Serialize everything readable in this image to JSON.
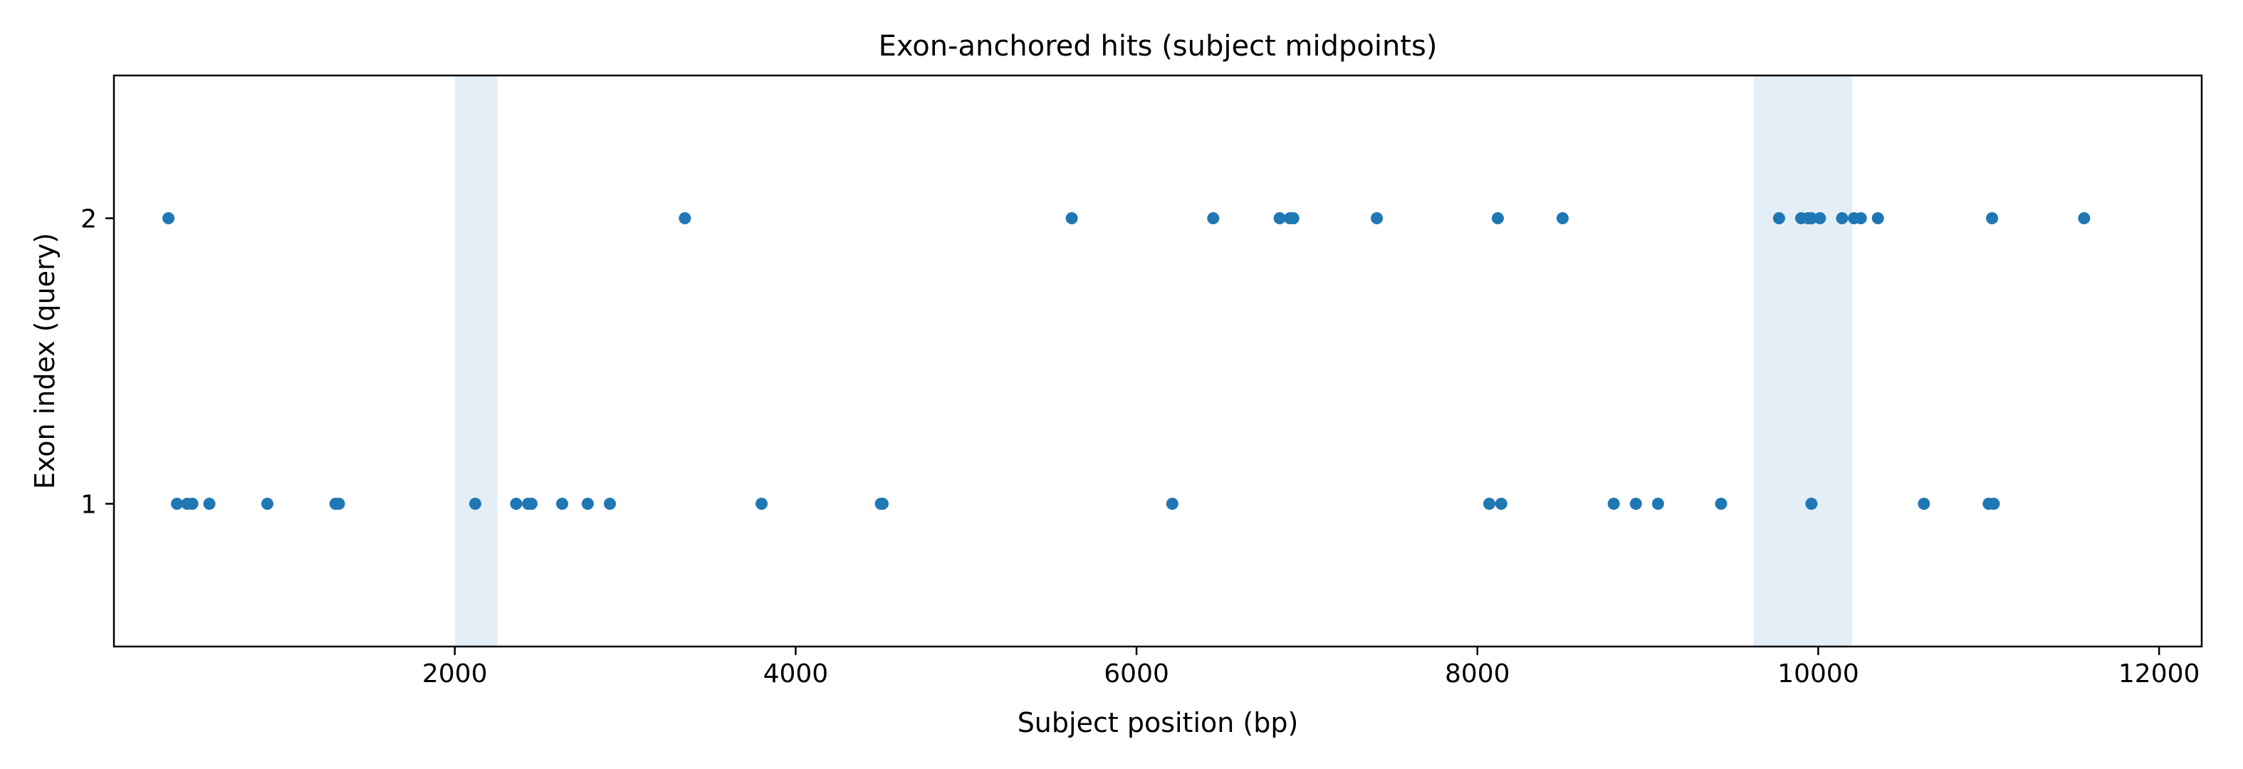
{
  "chart_data": {
    "type": "scatter",
    "title": "Exon-anchored hits (subject midpoints)",
    "xlabel": "Subject position (bp)",
    "ylabel": "Exon index (query)",
    "xlim": [
      0,
      12250
    ],
    "ylim": [
      0.5,
      2.5
    ],
    "xticks": [
      2000,
      4000,
      6000,
      8000,
      10000,
      12000
    ],
    "yticks": [
      1,
      2
    ],
    "grid": false,
    "legend": "none",
    "point_color": "#1f77b4",
    "shaded_regions": [
      {
        "x0": 2000,
        "x1": 2250,
        "color": "#1f77b4",
        "opacity": 0.12
      },
      {
        "x0": 9620,
        "x1": 10200,
        "color": "#1f77b4",
        "opacity": 0.12
      }
    ],
    "points": [
      {
        "x": 320,
        "y": 2
      },
      {
        "x": 3350,
        "y": 2
      },
      {
        "x": 5620,
        "y": 2
      },
      {
        "x": 6450,
        "y": 2
      },
      {
        "x": 6840,
        "y": 2
      },
      {
        "x": 6900,
        "y": 2
      },
      {
        "x": 6920,
        "y": 2
      },
      {
        "x": 7410,
        "y": 2
      },
      {
        "x": 8120,
        "y": 2
      },
      {
        "x": 8500,
        "y": 2
      },
      {
        "x": 9770,
        "y": 2
      },
      {
        "x": 9900,
        "y": 2
      },
      {
        "x": 9940,
        "y": 2
      },
      {
        "x": 9960,
        "y": 2
      },
      {
        "x": 10010,
        "y": 2
      },
      {
        "x": 10140,
        "y": 2
      },
      {
        "x": 10210,
        "y": 2
      },
      {
        "x": 10250,
        "y": 2
      },
      {
        "x": 10350,
        "y": 2
      },
      {
        "x": 11020,
        "y": 2
      },
      {
        "x": 11560,
        "y": 2
      },
      {
        "x": 370,
        "y": 1
      },
      {
        "x": 430,
        "y": 1
      },
      {
        "x": 460,
        "y": 1
      },
      {
        "x": 560,
        "y": 1
      },
      {
        "x": 900,
        "y": 1
      },
      {
        "x": 1300,
        "y": 1
      },
      {
        "x": 1320,
        "y": 1
      },
      {
        "x": 2120,
        "y": 1
      },
      {
        "x": 2360,
        "y": 1
      },
      {
        "x": 2430,
        "y": 1
      },
      {
        "x": 2450,
        "y": 1
      },
      {
        "x": 2630,
        "y": 1
      },
      {
        "x": 2780,
        "y": 1
      },
      {
        "x": 2910,
        "y": 1
      },
      {
        "x": 3800,
        "y": 1
      },
      {
        "x": 4500,
        "y": 1
      },
      {
        "x": 4510,
        "y": 1
      },
      {
        "x": 6210,
        "y": 1
      },
      {
        "x": 8070,
        "y": 1
      },
      {
        "x": 8140,
        "y": 1
      },
      {
        "x": 8800,
        "y": 1
      },
      {
        "x": 8930,
        "y": 1
      },
      {
        "x": 9060,
        "y": 1
      },
      {
        "x": 9430,
        "y": 1
      },
      {
        "x": 9960,
        "y": 1
      },
      {
        "x": 10620,
        "y": 1
      },
      {
        "x": 11000,
        "y": 1
      },
      {
        "x": 11030,
        "y": 1
      }
    ]
  }
}
